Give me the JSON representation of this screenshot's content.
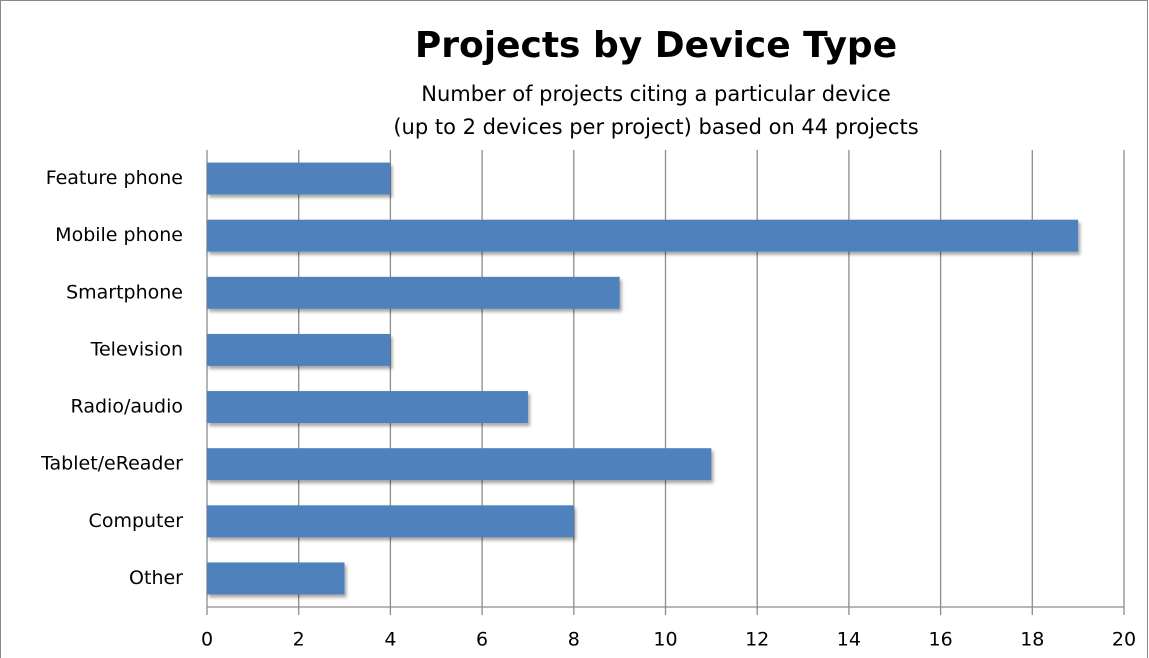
{
  "chart_data": {
    "type": "bar",
    "orientation": "horizontal",
    "title": "Projects by Device Type",
    "subtitle": [
      "Number of projects citing a particular device",
      "(up to 2 devices per project) based on 44 projects"
    ],
    "categories": [
      "Feature phone",
      "Mobile phone",
      "Smartphone",
      "Television",
      "Radio/audio",
      "Tablet/eReader",
      "Computer",
      "Other"
    ],
    "values": [
      4,
      19,
      9,
      4,
      7,
      11,
      8,
      3
    ],
    "color": "#4f81bd",
    "xlim": [
      0,
      20
    ],
    "xticks": [
      0,
      2,
      4,
      6,
      8,
      10,
      12,
      14,
      16,
      18,
      20
    ],
    "grid": true
  }
}
